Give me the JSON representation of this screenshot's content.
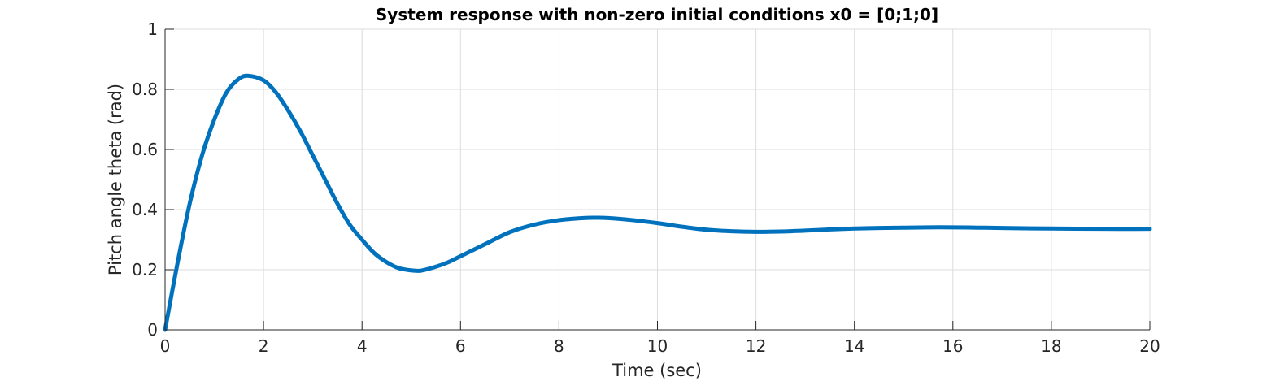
{
  "chart_data": {
    "type": "line",
    "title": "System response with non-zero initial conditions x0 = [0;1;0]",
    "xlabel": "Time (sec)",
    "ylabel": "Pitch angle theta (rad)",
    "xlim": [
      0,
      20
    ],
    "ylim": [
      0,
      1
    ],
    "grid": true,
    "xticks": [
      0,
      2,
      4,
      6,
      8,
      10,
      12,
      14,
      16,
      18,
      20
    ],
    "xtick_labels": [
      "0",
      "2",
      "4",
      "6",
      "8",
      "10",
      "12",
      "14",
      "16",
      "18",
      "20"
    ],
    "yticks": [
      0,
      0.2,
      0.4,
      0.6,
      0.8,
      1
    ],
    "ytick_labels": [
      "0",
      "0.2",
      "0.4",
      "0.6",
      "0.8",
      "1"
    ],
    "series": [
      {
        "color": "#0072bd",
        "x": [
          0,
          0.25,
          0.5,
          0.75,
          1.0,
          1.25,
          1.5,
          1.7,
          2.0,
          2.25,
          2.5,
          2.75,
          3.0,
          3.25,
          3.5,
          3.75,
          4.0,
          4.25,
          4.5,
          4.75,
          5.0,
          5.2,
          5.5,
          5.75,
          6.0,
          6.5,
          7.0,
          7.5,
          8.0,
          8.5,
          8.75,
          9.0,
          9.5,
          10.0,
          10.5,
          11.0,
          11.5,
          12.0,
          12.5,
          13.0,
          13.5,
          14.0,
          14.5,
          15.0,
          15.5,
          16.0,
          16.5,
          17.0,
          18.0,
          19.0,
          20.0
        ],
        "y": [
          0.0,
          0.22,
          0.42,
          0.58,
          0.7,
          0.79,
          0.835,
          0.845,
          0.83,
          0.79,
          0.73,
          0.66,
          0.58,
          0.5,
          0.42,
          0.35,
          0.3,
          0.255,
          0.225,
          0.205,
          0.198,
          0.197,
          0.21,
          0.225,
          0.245,
          0.285,
          0.325,
          0.35,
          0.365,
          0.372,
          0.373,
          0.372,
          0.365,
          0.355,
          0.343,
          0.333,
          0.328,
          0.326,
          0.327,
          0.33,
          0.334,
          0.337,
          0.339,
          0.34,
          0.341,
          0.341,
          0.34,
          0.339,
          0.337,
          0.336,
          0.336
        ]
      }
    ]
  }
}
